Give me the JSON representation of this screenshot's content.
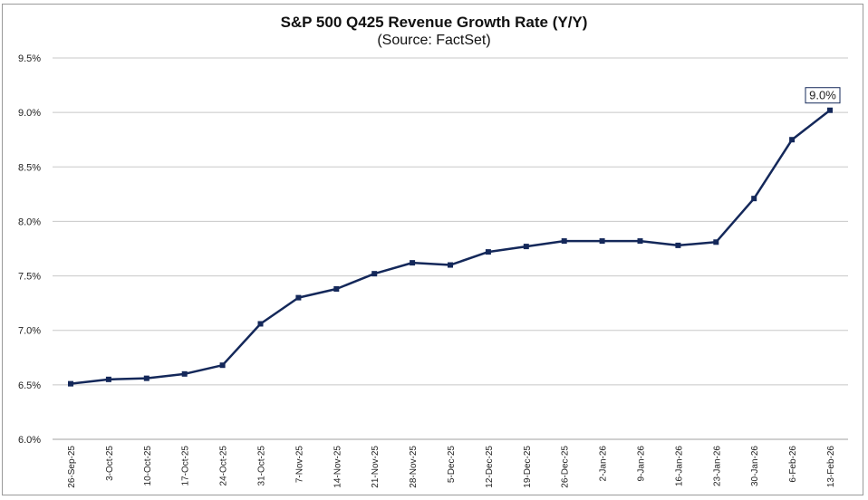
{
  "chart_data": {
    "type": "line",
    "title": "S&P 500 Q425 Revenue Growth Rate (Y/Y)",
    "subtitle": "(Source: FactSet)",
    "xlabel": "",
    "ylabel": "",
    "ylim": [
      6.0,
      9.5
    ],
    "yticks": [
      "6.0%",
      "6.5%",
      "7.0%",
      "7.5%",
      "8.0%",
      "8.5%",
      "9.0%",
      "9.5%"
    ],
    "grid": true,
    "legend": "none",
    "categories": [
      "26-Sep-25",
      "3-Oct-25",
      "10-Oct-25",
      "17-Oct-25",
      "24-Oct-25",
      "31-Oct-25",
      "7-Nov-25",
      "14-Nov-25",
      "21-Nov-25",
      "28-Nov-25",
      "5-Dec-25",
      "12-Dec-25",
      "19-Dec-25",
      "26-Dec-25",
      "2-Jan-26",
      "9-Jan-26",
      "16-Jan-26",
      "23-Jan-26",
      "30-Jan-26",
      "6-Feb-26",
      "13-Feb-26"
    ],
    "series": [
      {
        "name": "Revenue Growth Rate",
        "color": "#14285a",
        "values": [
          6.51,
          6.55,
          6.56,
          6.6,
          6.68,
          7.06,
          7.3,
          7.38,
          7.52,
          7.62,
          7.6,
          7.72,
          7.77,
          7.82,
          7.82,
          7.82,
          7.78,
          7.81,
          8.21,
          8.75,
          9.02
        ]
      }
    ],
    "annotations": [
      {
        "text": "9.0%",
        "point_index": 20
      }
    ]
  }
}
